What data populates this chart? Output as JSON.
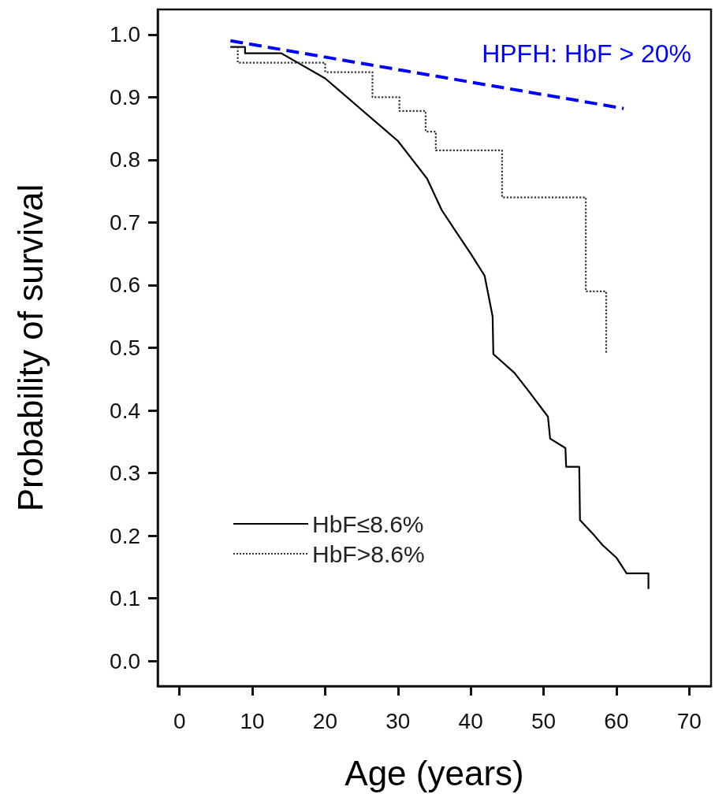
{
  "chart_data": {
    "type": "line",
    "xlabel": "Age (years)",
    "ylabel": "Probability of survival",
    "xlim": [
      -3,
      73
    ],
    "xticks": [
      0,
      10,
      20,
      30,
      40,
      50,
      60,
      70
    ],
    "ylim": [
      -0.04,
      1.04
    ],
    "yticks": [
      {
        "value": 0,
        "label": "0.0"
      },
      {
        "value": 0.1,
        "label": "0.1"
      },
      {
        "value": 0.2,
        "label": "0.2"
      },
      {
        "value": 0.3,
        "label": "0.3"
      },
      {
        "value": 0.4,
        "label": "0.4"
      },
      {
        "value": 0.5,
        "label": "0.5"
      },
      {
        "value": 0.6,
        "label": "0.6"
      },
      {
        "value": 0.7,
        "label": "0.7"
      },
      {
        "value": 0.8,
        "label": "0.8"
      },
      {
        "value": 0.9,
        "label": "0.9"
      },
      {
        "value": 1,
        "label": "1.0"
      }
    ],
    "grid": false,
    "legend": "bottom left",
    "marker": "none",
    "annotations": [
      "HPFH: HbF > 20%"
    ],
    "series": [
      {
        "name": "HbF≤8.6%",
        "color": "#000000",
        "line_style": "solid",
        "x": [
          7,
          9,
          9,
          14,
          17,
          20,
          22,
          25,
          28,
          30,
          32,
          34,
          36,
          37.7,
          40,
          41.9,
          43,
          43.1,
          46,
          48,
          50.6,
          50.9,
          53,
          53.1,
          54.9,
          55,
          57,
          58.1,
          60,
          61.4,
          64.4,
          64.4
        ],
        "values": [
          0.98,
          0.98,
          0.97,
          0.97,
          0.95,
          0.93,
          0.91,
          0.88,
          0.85,
          0.83,
          0.8,
          0.77,
          0.72,
          0.69,
          0.65,
          0.615,
          0.55,
          0.49,
          0.46,
          0.43,
          0.39,
          0.355,
          0.34,
          0.31,
          0.31,
          0.225,
          0.2,
          0.185,
          0.165,
          0.14,
          0.14,
          0.115
        ]
      },
      {
        "name": "HbF>8.6%",
        "type": "step",
        "color": "#333333",
        "line_style": "dotted",
        "x": [
          7,
          8,
          20,
          26.5,
          30.2,
          33.8,
          35.2,
          44.3,
          55.8,
          58.6
        ],
        "values": [
          0.98,
          0.955,
          0.94,
          0.9,
          0.878,
          0.845,
          0.815,
          0.74,
          0.59,
          0.49
        ]
      },
      {
        "color": "#0000ff",
        "line_style": "dashed",
        "x": [
          7,
          61
        ],
        "values": [
          0.99,
          0.882
        ]
      }
    ]
  }
}
